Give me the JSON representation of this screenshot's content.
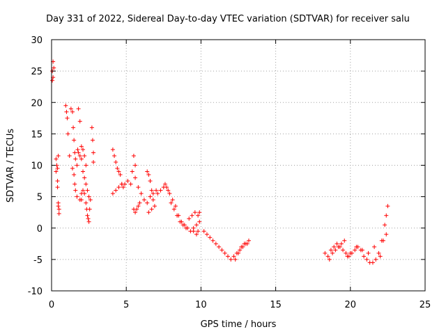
{
  "chart_data": {
    "type": "scatter",
    "title": "Day 331 of 2022, Sidereal Day-to-day VTEC variation (SDTVAR) for receiver salu",
    "xlabel": "GPS time / hours",
    "ylabel": "SDTVAR / TECUs",
    "xlim": [
      0,
      25
    ],
    "ylim": [
      -10,
      30
    ],
    "xticks": [
      "0",
      "5",
      "10",
      "15",
      "20",
      "25"
    ],
    "yticks": [
      "-10",
      "-5",
      "0",
      "5",
      "10",
      "15",
      "20",
      "25",
      "30"
    ],
    "grid": true,
    "marker": "plus",
    "color": "#ff0000",
    "series": [
      {
        "name": "SDTVAR",
        "x": [
          0.05,
          0.1,
          0.15,
          0.05,
          0.1,
          0.3,
          0.35,
          0.4,
          0.45,
          0.3,
          0.4,
          0.45,
          0.5,
          0.4,
          0.45,
          0.5,
          0.95,
          1.0,
          1.05,
          1.1,
          1.2,
          1.3,
          1.4,
          1.45,
          1.5,
          1.55,
          1.6,
          1.7,
          1.4,
          1.5,
          1.55,
          1.6,
          1.7,
          1.8,
          1.9,
          2.0,
          2.1,
          2.2,
          2.3,
          1.9,
          2.0,
          2.1,
          2.2,
          2.3,
          2.35,
          2.4,
          2.45,
          2.5,
          2.55,
          2.6,
          2.1,
          2.2,
          2.3,
          2.4,
          2.5,
          1.75,
          1.8,
          1.9,
          2.0,
          2.0,
          2.7,
          2.75,
          2.8,
          2.8,
          4.1,
          4.2,
          4.3,
          4.4,
          4.5,
          4.6,
          4.7,
          4.8,
          4.1,
          4.3,
          4.5,
          4.7,
          4.9,
          5.1,
          5.3,
          5.5,
          5.6,
          5.5,
          5.6,
          5.7,
          5.8,
          5.9,
          5.4,
          5.6,
          5.8,
          6.0,
          6.2,
          6.4,
          6.6,
          6.8,
          7.0,
          6.4,
          6.5,
          6.6,
          6.7,
          6.8,
          6.5,
          6.7,
          6.9,
          7.1,
          7.3,
          7.5,
          7.7,
          7.9,
          8.1,
          8.3,
          8.5,
          8.7,
          8.9,
          9.1,
          9.3,
          9.5,
          9.7,
          9.9,
          7.6,
          7.8,
          8.0,
          8.2,
          8.4,
          8.6,
          8.8,
          9.0,
          9.2,
          9.4,
          9.6,
          9.8,
          9.9,
          9.5,
          9.7,
          9.8,
          10.2,
          10.4,
          10.6,
          10.8,
          11.0,
          11.2,
          11.4,
          11.6,
          11.8,
          12.0,
          12.2,
          12.4,
          12.6,
          12.8,
          13.0,
          13.2,
          12.3,
          12.5,
          12.7,
          12.9,
          13.1,
          18.3,
          18.5,
          18.7,
          18.9,
          19.1,
          19.3,
          19.5,
          19.7,
          19.9,
          20.1,
          20.3,
          20.5,
          20.7,
          20.9,
          21.1,
          21.3,
          21.5,
          21.7,
          21.9,
          22.1,
          22.3,
          22.4,
          22.5,
          18.6,
          18.8,
          19.0,
          19.2,
          19.4,
          19.6,
          19.8,
          20.0,
          20.4,
          20.8,
          21.2,
          21.6,
          22.0,
          22.2,
          22.4
        ],
        "y": [
          25.0,
          26.5,
          25.5,
          23.5,
          24.0,
          11.0,
          10.0,
          9.5,
          11.5,
          9.0,
          6.5,
          4.0,
          3.0,
          7.5,
          3.5,
          2.3,
          19.5,
          18.5,
          17.5,
          15.0,
          11.5,
          19.0,
          18.5,
          16.0,
          14.0,
          12.0,
          11.0,
          10.0,
          9.5,
          8.5,
          7.0,
          6.0,
          5.0,
          19.0,
          17.0,
          13.0,
          12.5,
          11.5,
          10.0,
          4.5,
          5.5,
          6.0,
          5.5,
          4.0,
          3.0,
          2.0,
          1.5,
          1.0,
          3.0,
          4.5,
          9.0,
          8.0,
          7.0,
          6.0,
          5.0,
          12.5,
          12.0,
          11.5,
          11.0,
          4.5,
          16.0,
          14.0,
          12.0,
          10.5,
          12.5,
          11.5,
          10.5,
          9.5,
          9.0,
          8.5,
          7.0,
          6.5,
          5.5,
          6.0,
          6.5,
          7.0,
          7.0,
          7.5,
          7.0,
          11.5,
          10.0,
          3.0,
          2.5,
          3.0,
          3.5,
          4.0,
          9.0,
          8.0,
          6.5,
          5.5,
          4.5,
          4.0,
          5.0,
          4.5,
          6.0,
          9.0,
          8.5,
          7.5,
          6.0,
          5.5,
          2.5,
          3.0,
          3.5,
          5.5,
          6.0,
          6.5,
          6.5,
          5.5,
          4.5,
          3.5,
          2.0,
          1.0,
          0.5,
          0.0,
          -0.5,
          0.0,
          0.5,
          2.5,
          7.0,
          6.0,
          4.0,
          3.0,
          2.0,
          1.0,
          0.5,
          0.0,
          1.5,
          2.0,
          2.5,
          2.0,
          1.0,
          -0.5,
          -1.0,
          -0.5,
          -0.5,
          -1.0,
          -1.5,
          -2.0,
          -2.5,
          -3.0,
          -3.5,
          -4.0,
          -4.5,
          -5.0,
          -4.5,
          -4.0,
          -3.5,
          -3.0,
          -2.5,
          -2.0,
          -5.0,
          -4.0,
          -3.0,
          -2.5,
          -2.5,
          -4.0,
          -4.5,
          -3.5,
          -3.0,
          -2.5,
          -3.0,
          -3.5,
          -4.0,
          -4.5,
          -4.0,
          -3.5,
          -3.0,
          -3.5,
          -4.5,
          -5.0,
          -5.5,
          -5.5,
          -5.0,
          -4.0,
          -2.0,
          0.5,
          2.0,
          3.5,
          -5.0,
          -4.0,
          -3.5,
          -3.0,
          -2.5,
          -2.0,
          -4.5,
          -4.0,
          -3.0,
          -3.5,
          -4.0,
          -3.0,
          -4.5,
          -2.0,
          -1.0
        ]
      }
    ]
  }
}
